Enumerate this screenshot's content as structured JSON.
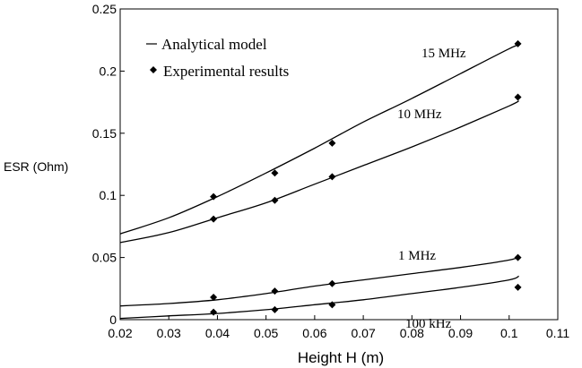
{
  "chart_data": {
    "type": "line",
    "title": "",
    "xlabel": "Height H (m)",
    "ylabel": "ESR (Ohm)",
    "xlim": [
      0.02,
      0.11
    ],
    "ylim": [
      0,
      0.25
    ],
    "xticks": [
      "0.02",
      "0.03",
      "0.04",
      "0.05",
      "0.06",
      "0.07",
      "0.08",
      "0.09",
      "0.1",
      "0.11"
    ],
    "yticks": [
      "0",
      "0.05",
      "0.1",
      "0.15",
      "0.2",
      "0.25"
    ],
    "grid": false,
    "legend": {
      "placement": "top-left",
      "model_label": "Analytical model",
      "experiment_label": "Experimental results"
    },
    "series": [
      {
        "name": "15 MHz",
        "model": {
          "x": [
            0.02,
            0.03,
            0.04,
            0.05,
            0.06,
            0.07,
            0.08,
            0.09,
            0.1,
            0.102
          ],
          "y": [
            0.069,
            0.082,
            0.099,
            0.118,
            0.138,
            0.159,
            0.178,
            0.198,
            0.218,
            0.221
          ]
        },
        "experimental": {
          "x": [
            0.0392,
            0.0518,
            0.0636,
            0.1018
          ],
          "y": [
            0.099,
            0.118,
            0.142,
            0.222
          ]
        }
      },
      {
        "name": "10 MHz",
        "model": {
          "x": [
            0.02,
            0.03,
            0.04,
            0.05,
            0.06,
            0.07,
            0.08,
            0.09,
            0.1,
            0.102
          ],
          "y": [
            0.062,
            0.07,
            0.082,
            0.094,
            0.109,
            0.124,
            0.139,
            0.155,
            0.172,
            0.176
          ]
        },
        "experimental": {
          "x": [
            0.0392,
            0.0518,
            0.0636,
            0.1018
          ],
          "y": [
            0.081,
            0.096,
            0.115,
            0.179
          ]
        }
      },
      {
        "name": "1 MHz",
        "model": {
          "x": [
            0.02,
            0.03,
            0.04,
            0.05,
            0.06,
            0.07,
            0.08,
            0.09,
            0.1,
            0.102
          ],
          "y": [
            0.011,
            0.013,
            0.016,
            0.021,
            0.027,
            0.032,
            0.037,
            0.042,
            0.048,
            0.051
          ]
        },
        "experimental": {
          "x": [
            0.0392,
            0.0518,
            0.0636,
            0.1018
          ],
          "y": [
            0.018,
            0.023,
            0.029,
            0.05
          ]
        }
      },
      {
        "name": "100 kHz",
        "model": {
          "x": [
            0.02,
            0.03,
            0.04,
            0.05,
            0.06,
            0.07,
            0.08,
            0.09,
            0.1,
            0.102
          ],
          "y": [
            0.001,
            0.003,
            0.005,
            0.008,
            0.012,
            0.016,
            0.021,
            0.026,
            0.032,
            0.035
          ]
        },
        "experimental": {
          "x": [
            0.0392,
            0.0518,
            0.0636,
            0.1018
          ],
          "y": [
            0.006,
            0.008,
            0.012,
            0.026
          ]
        }
      }
    ]
  }
}
